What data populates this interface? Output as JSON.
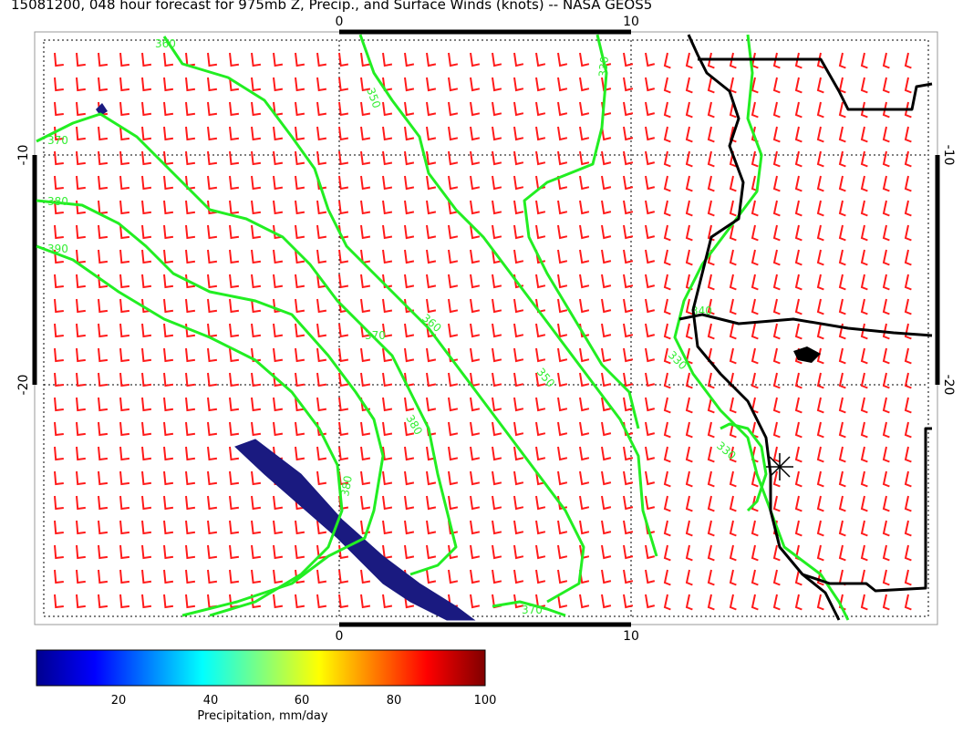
{
  "title": "15081200, 048 hour forecast for 975mb Z, Precip., and Surface Winds (knots) -- NASA GEOS5",
  "axes": {
    "x_ticks": [
      "0",
      "10"
    ],
    "y_ticks": [
      "-10",
      "-20"
    ]
  },
  "contour_labels": [
    "360",
    "350",
    "370",
    "380",
    "390",
    "360",
    "370",
    "380",
    "350",
    "330",
    "340",
    "330",
    "330",
    "370",
    "380"
  ],
  "colorbar": {
    "ticks": [
      "20",
      "40",
      "60",
      "80",
      "100"
    ],
    "label": "Precipitation, mm/day"
  },
  "colors": {
    "wind_barbs": "#ff1a1a",
    "contours": "#22ee22",
    "precip_band": "#1a1a80",
    "coastline": "#000000"
  }
}
